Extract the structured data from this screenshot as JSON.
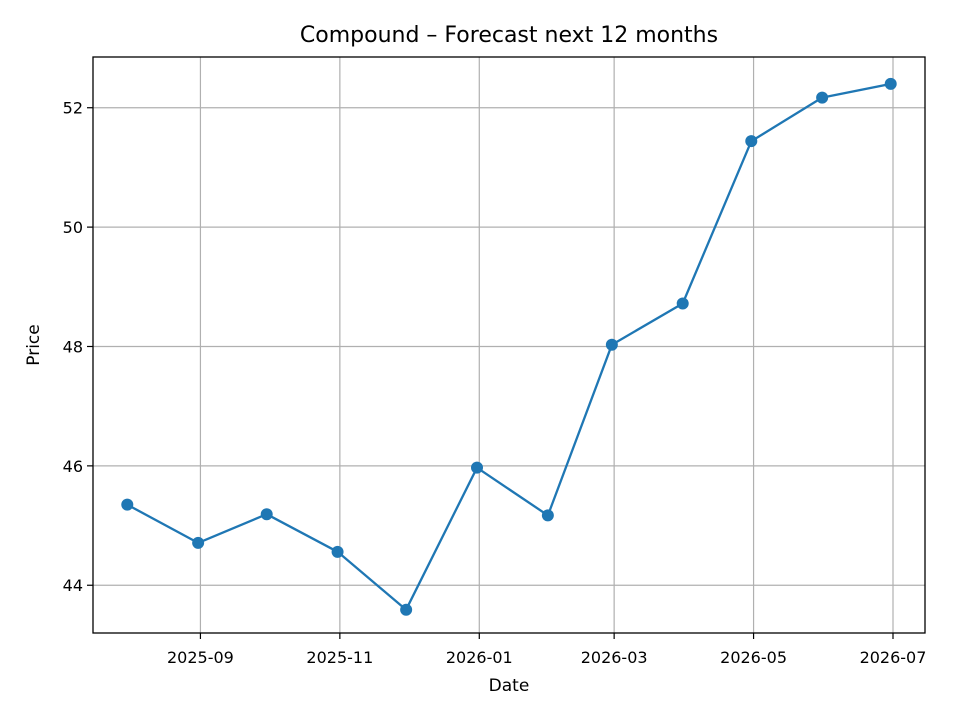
{
  "chart_data": {
    "type": "line",
    "title": "Compound – Forecast next 12 months",
    "xlabel": "Date",
    "ylabel": "Price",
    "x_type": "date",
    "xlim": [
      "2025-07-16",
      "2026-07-15"
    ],
    "ylim": [
      43.2,
      52.85
    ],
    "grid": true,
    "xticks": [
      {
        "date": "2025-09-01",
        "label": "2025-09"
      },
      {
        "date": "2025-11-01",
        "label": "2025-11"
      },
      {
        "date": "2026-01-01",
        "label": "2026-01"
      },
      {
        "date": "2026-03-01",
        "label": "2026-03"
      },
      {
        "date": "2026-05-01",
        "label": "2026-05"
      },
      {
        "date": "2026-07-01",
        "label": "2026-07"
      }
    ],
    "yticks": [
      {
        "value": 44,
        "label": "44"
      },
      {
        "value": 46,
        "label": "46"
      },
      {
        "value": 48,
        "label": "48"
      },
      {
        "value": 50,
        "label": "50"
      },
      {
        "value": 52,
        "label": "52"
      }
    ],
    "series": [
      {
        "color": "#1f77b4",
        "marker": "circle",
        "points": [
          {
            "x": "2025-07-31",
            "y": 45.35
          },
          {
            "x": "2025-08-31",
            "y": 44.71
          },
          {
            "x": "2025-09-30",
            "y": 45.19
          },
          {
            "x": "2025-10-31",
            "y": 44.56
          },
          {
            "x": "2025-11-30",
            "y": 43.59
          },
          {
            "x": "2025-12-31",
            "y": 45.97
          },
          {
            "x": "2026-01-31",
            "y": 45.17
          },
          {
            "x": "2026-02-28",
            "y": 48.03
          },
          {
            "x": "2026-03-31",
            "y": 48.72
          },
          {
            "x": "2026-04-30",
            "y": 51.44
          },
          {
            "x": "2026-05-31",
            "y": 52.17
          },
          {
            "x": "2026-06-30",
            "y": 52.4
          }
        ]
      }
    ]
  }
}
